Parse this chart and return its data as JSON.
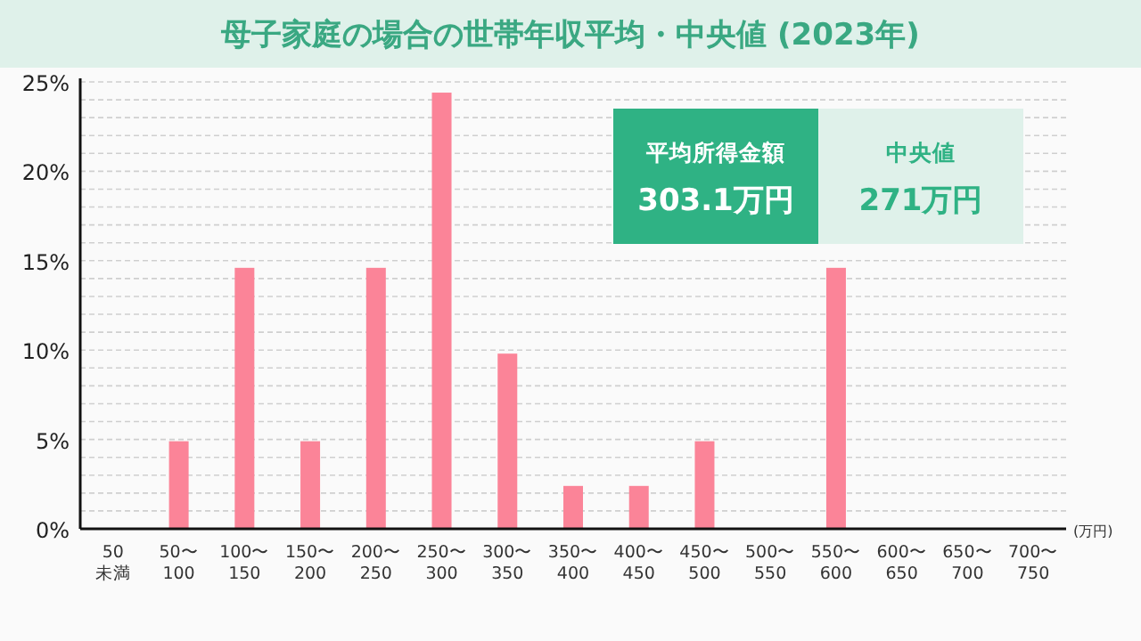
{
  "chart_data": {
    "type": "bar",
    "title": "母子家庭の場合の世帯年収平均・中央値 (2023年)",
    "xlabel": "(万円)",
    "categories": [
      "50\n未満",
      "50〜\n100",
      "100〜\n150",
      "150〜\n200",
      "200〜\n250",
      "250〜\n300",
      "300〜\n350",
      "350〜\n400",
      "400〜\n450",
      "450〜\n500",
      "500〜\n550",
      "550〜\n600",
      "600〜\n650",
      "650〜\n700",
      "700〜\n750"
    ],
    "values": [
      0,
      4.9,
      14.6,
      4.9,
      14.6,
      24.4,
      9.8,
      2.4,
      2.4,
      4.9,
      0,
      14.6,
      0,
      0,
      0
    ],
    "color": "#fb8498",
    "ylim": [
      0,
      25
    ],
    "yticks": [
      {
        "value": 0,
        "label": "0%"
      },
      {
        "value": 1,
        "label": null
      },
      {
        "value": 2,
        "label": null
      },
      {
        "value": 3,
        "label": null
      },
      {
        "value": 4,
        "label": null
      },
      {
        "value": 5,
        "label": "5%"
      },
      {
        "value": 6,
        "label": null
      },
      {
        "value": 7,
        "label": null
      },
      {
        "value": 8,
        "label": null
      },
      {
        "value": 9,
        "label": null
      },
      {
        "value": 10,
        "label": "10%"
      },
      {
        "value": 11,
        "label": null
      },
      {
        "value": 12,
        "label": null
      },
      {
        "value": 13,
        "label": null
      },
      {
        "value": 14,
        "label": null
      },
      {
        "value": 15,
        "label": "15%"
      },
      {
        "value": 16,
        "label": null
      },
      {
        "value": 17,
        "label": null
      },
      {
        "value": 18,
        "label": null
      },
      {
        "value": 19,
        "label": null
      },
      {
        "value": 20,
        "label": "20%"
      },
      {
        "value": 21,
        "label": null
      },
      {
        "value": 22,
        "label": null
      },
      {
        "value": 23,
        "label": null
      },
      {
        "value": 24,
        "label": null
      },
      {
        "value": 25,
        "label": "25%"
      }
    ],
    "grid": "y",
    "annotations": [
      "平均所得金額",
      "303.1万円",
      "中央値",
      "271万円"
    ]
  }
}
